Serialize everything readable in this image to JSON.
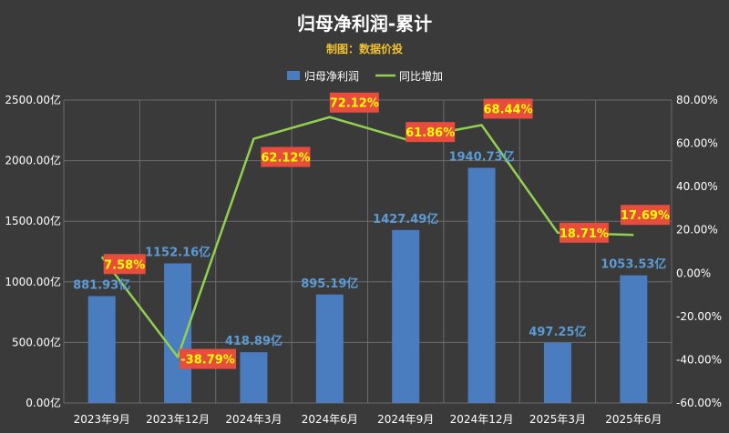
{
  "colors": {
    "background": "#3a3a3a",
    "bar": "#4a7cc0",
    "line": "#92d050",
    "grid": "#6b6b6b",
    "bar_label": "#5b9bd5",
    "pct_label_bg": "#e74c3c",
    "pct_label_text": "#ffff00"
  },
  "chart_data": {
    "type": "bar+line",
    "title": "归母净利润-累计",
    "subtitle": "制图：数据价投",
    "categories": [
      "2023年9月",
      "2023年12月",
      "2024年3月",
      "2024年6月",
      "2024年9月",
      "2024年12月",
      "2025年3月",
      "2025年6月"
    ],
    "series": [
      {
        "name": "归母净利润",
        "type": "bar",
        "axis": "left",
        "values": [
          881.93,
          1152.16,
          418.89,
          895.19,
          1427.49,
          1940.73,
          497.25,
          1053.53
        ],
        "labels": [
          "881.93亿",
          "1152.16亿",
          "418.89亿",
          "895.19亿",
          "1427.49亿",
          "1940.73亿",
          "497.25亿",
          "1053.53亿"
        ]
      },
      {
        "name": "同比增加",
        "type": "line",
        "axis": "right",
        "values": [
          7.58,
          -38.79,
          62.12,
          72.12,
          61.86,
          68.44,
          18.71,
          17.69
        ],
        "labels": [
          "7.58%",
          "-38.79%",
          "62.12%",
          "72.12%",
          "61.86%",
          "68.44%",
          "18.71%",
          "17.69%"
        ]
      }
    ],
    "y_left": {
      "min": 0,
      "max": 2500,
      "step": 500,
      "ticks": [
        "0.00亿",
        "500.00亿",
        "1000.00亿",
        "1500.00亿",
        "2000.00亿",
        "2500.00亿"
      ]
    },
    "y_right": {
      "min": -60,
      "max": 80,
      "step": 20,
      "ticks": [
        "-60.00%",
        "-40.00%",
        "-20.00%",
        "0.00%",
        "20.00%",
        "40.00%",
        "60.00%",
        "80.00%"
      ]
    },
    "grid": true,
    "legend": "top-center"
  }
}
